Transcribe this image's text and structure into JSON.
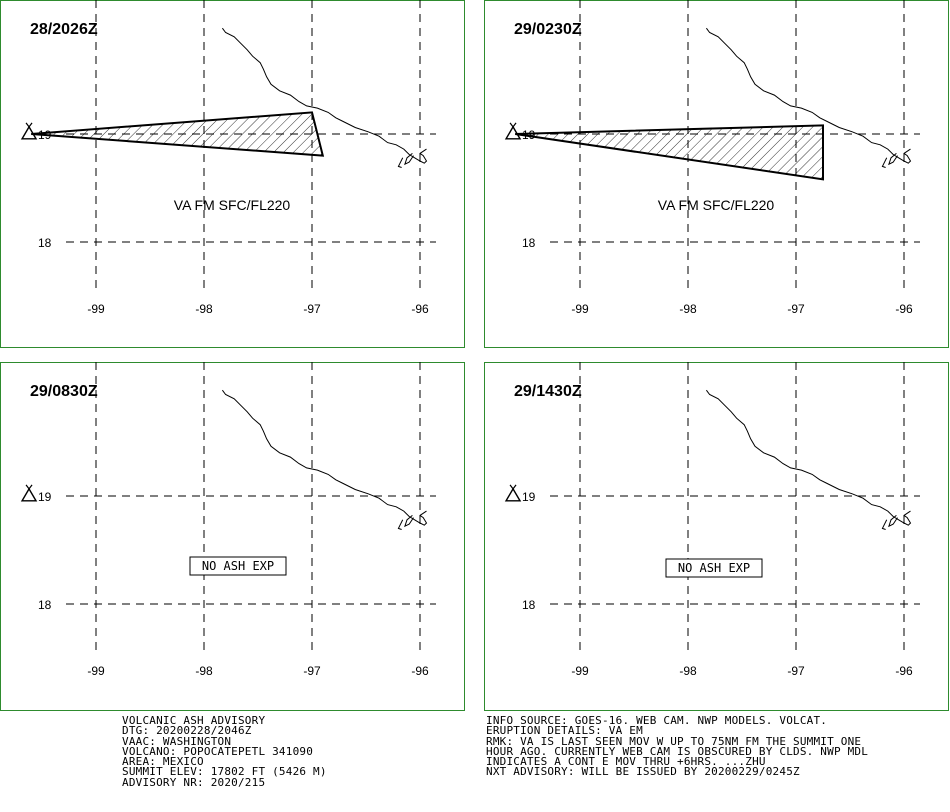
{
  "colors": {
    "frame": "#2e8b2e",
    "grid": "#000000",
    "ash_fill": "#000000"
  },
  "axes": {
    "lat_labels": [
      "19",
      "18"
    ],
    "lon_labels": [
      "-99",
      "-98",
      "-97",
      "-96"
    ]
  },
  "panels": [
    {
      "time": "28/2026Z",
      "ash_layer_label": "VA FM SFC/FL220",
      "no_ash_text": "",
      "ash_polygon": [
        [
          -99.6,
          19.0
        ],
        [
          -97.0,
          19.2
        ],
        [
          -96.9,
          18.8
        ]
      ]
    },
    {
      "time": "29/0230Z",
      "ash_layer_label": "VA FM SFC/FL220",
      "no_ash_text": "",
      "ash_polygon": [
        [
          -99.6,
          19.0
        ],
        [
          -96.75,
          19.08
        ],
        [
          -96.75,
          18.58
        ]
      ]
    },
    {
      "time": "29/0830Z",
      "ash_layer_label": "",
      "no_ash_text": "NO ASH EXP",
      "ash_polygon": []
    },
    {
      "time": "29/1430Z",
      "ash_layer_label": "",
      "no_ash_text": "NO ASH EXP",
      "ash_polygon": []
    }
  ],
  "advisory_left": [
    "VOLCANIC ASH ADVISORY",
    "DTG: 20200228/2046Z",
    "VAAC: WASHINGTON",
    "VOLCANO: POPOCATEPETL 341090",
    "AREA: MEXICO",
    "SUMMIT ELEV: 17802 FT (5426 M)",
    "ADVISORY NR: 2020/215"
  ],
  "advisory_right": [
    "INFO SOURCE: GOES-16. WEB CAM. NWP MODELS. VOLCAT.",
    "ERUPTION DETAILS: VA EM",
    "RMK: VA IS LAST SEEN MOV W UP TO 75NM FM THE SUMMIT ONE",
    "HOUR AGO. CURRENTLY WEB CAM IS OBSCURED BY CLDS. NWP MDL",
    "INDICATES A CONT E MOV THRU +6HRS. ...ZHU",
    "NXT ADVISORY: WILL BE ISSUED BY 20200229/0245Z"
  ]
}
